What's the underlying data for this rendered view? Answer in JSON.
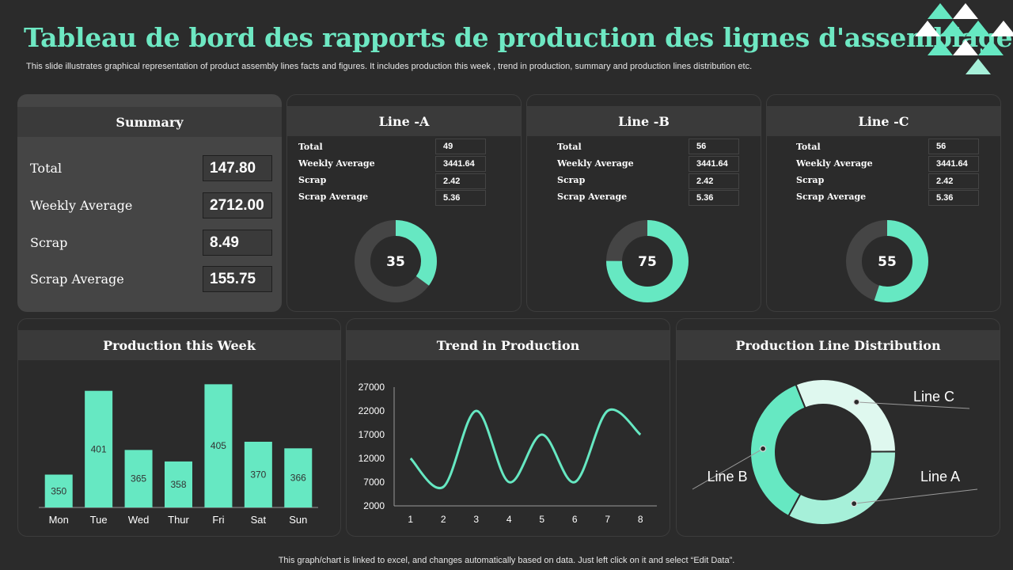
{
  "header": {
    "title": "Tableau de bord des rapports de production des lignes d'assemblage",
    "subtitle": "This slide illustrates graphical representation of product assembly lines facts and figures. It includes production this week , trend in production, summary and production lines distribution etc."
  },
  "footer": "This graph/chart is linked to excel,  and changes automatically based on data. Just left click on it and select “Edit Data”.",
  "colors": {
    "accent": "#66e8c2",
    "accent_light": "#a6f0d9",
    "accent_pale": "#dff8ef",
    "track": "#454545",
    "bg": "#2b2b2b"
  },
  "summary": {
    "title": "Summary",
    "rows": [
      {
        "label": "Total",
        "value": "147.80"
      },
      {
        "label": "Weekly Average",
        "value": "2712.00"
      },
      {
        "label": "Scrap",
        "value": "8.49"
      },
      {
        "label": "Scrap Average",
        "value": "155.75"
      }
    ]
  },
  "lines": [
    {
      "title": "Line -A",
      "rows": [
        {
          "label": "Total",
          "value": "49"
        },
        {
          "label": "Weekly Average",
          "value": "3441.64"
        },
        {
          "label": "Scrap",
          "value": "2.42"
        },
        {
          "label": "Scrap Average",
          "value": "5.36"
        }
      ],
      "donut": "35",
      "percent": 35
    },
    {
      "title": "Line -B",
      "rows": [
        {
          "label": "Total",
          "value": "56"
        },
        {
          "label": "Weekly Average",
          "value": "3441.64"
        },
        {
          "label": "Scrap",
          "value": "2.42"
        },
        {
          "label": "Scrap Average",
          "value": "5.36"
        }
      ],
      "donut": "75",
      "percent": 75
    },
    {
      "title": "Line -C",
      "rows": [
        {
          "label": "Total",
          "value": "56"
        },
        {
          "label": "Weekly Average",
          "value": "3441.64"
        },
        {
          "label": "Scrap",
          "value": "2.42"
        },
        {
          "label": "Scrap Average",
          "value": "5.36"
        }
      ],
      "donut": "55",
      "percent": 55
    }
  ],
  "chart_data": [
    {
      "type": "bar",
      "title": "Production this Week",
      "categories": [
        "Mon",
        "Tue",
        "Wed",
        "Thur",
        "Fri",
        "Sat",
        "Sun"
      ],
      "values": [
        350,
        401,
        365,
        358,
        405,
        370,
        366
      ],
      "ylim": [
        330,
        410
      ],
      "grid": false
    },
    {
      "type": "line",
      "title": "Trend in Production",
      "x": [
        1,
        2,
        3,
        4,
        5,
        6,
        7,
        8
      ],
      "y": [
        12000,
        6000,
        22000,
        7000,
        17000,
        7000,
        22000,
        17000
      ],
      "ylim": [
        2000,
        27000
      ],
      "yticks": [
        "2000",
        "7000",
        "12000",
        "17000",
        "22000",
        "27000"
      ],
      "xticks": [
        "1",
        "2",
        "3",
        "4",
        "5",
        "6",
        "7",
        "8"
      ],
      "grid": false
    },
    {
      "type": "pie",
      "title": "Production Line Distribution",
      "categories": [
        "Line C",
        "Line A",
        "Line B"
      ],
      "values": [
        31,
        33,
        36
      ],
      "colors": [
        "#dff8ef",
        "#a6f0d9",
        "#66e8c2"
      ]
    }
  ]
}
